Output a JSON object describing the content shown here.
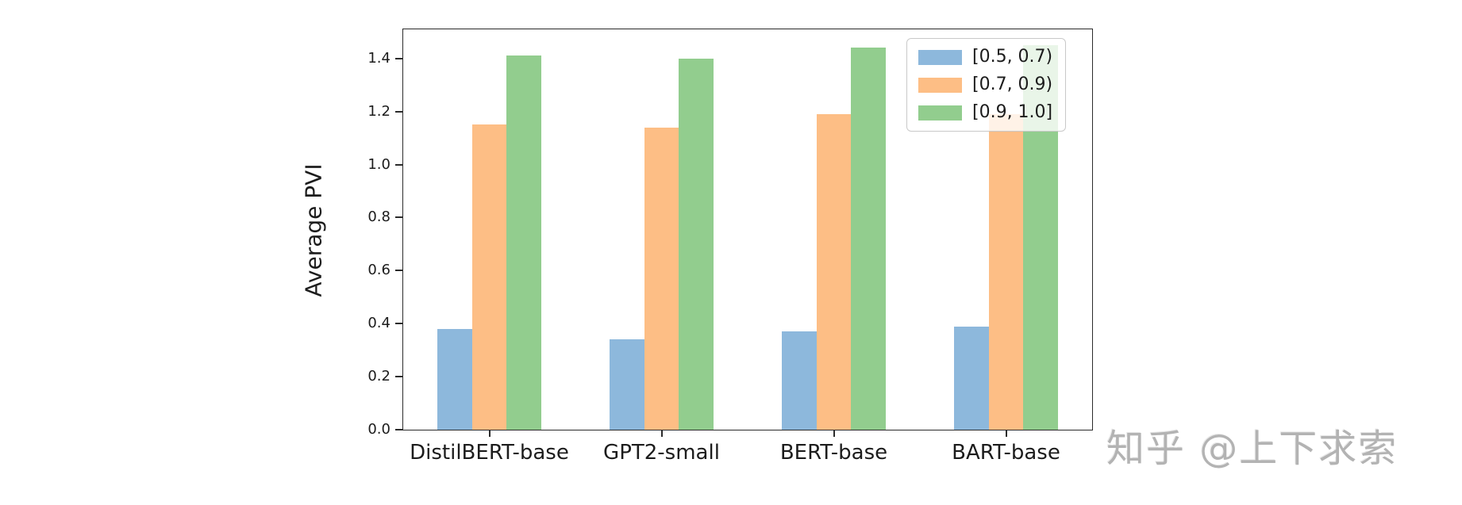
{
  "chart_data": {
    "type": "bar",
    "categories": [
      "DistilBERT-base",
      "GPT2-small",
      "BERT-base",
      "BART-base"
    ],
    "series": [
      {
        "name": "[0.5, 0.7)",
        "color": "#8db8dc",
        "values": [
          0.38,
          0.34,
          0.37,
          0.39
        ]
      },
      {
        "name": "[0.7, 0.9)",
        "color": "#fdbe85",
        "values": [
          1.15,
          1.14,
          1.19,
          1.19
        ]
      },
      {
        "name": "[0.9, 1.0]",
        "color": "#92cd8e",
        "values": [
          1.41,
          1.4,
          1.44,
          1.45
        ]
      }
    ],
    "title": "",
    "xlabel": "",
    "ylabel": "Average PVI",
    "yticks": [
      "0.0",
      "0.2",
      "0.4",
      "0.6",
      "0.8",
      "1.0",
      "1.2",
      "1.4"
    ],
    "ylim": [
      0,
      1.51
    ],
    "grid": false,
    "legend_position": "upper right",
    "bar_width_fraction": 0.2,
    "axis_color": "#2b2b2b"
  },
  "watermark": {
    "text": "知乎 @上下求索",
    "color": "#b3b3b3"
  }
}
